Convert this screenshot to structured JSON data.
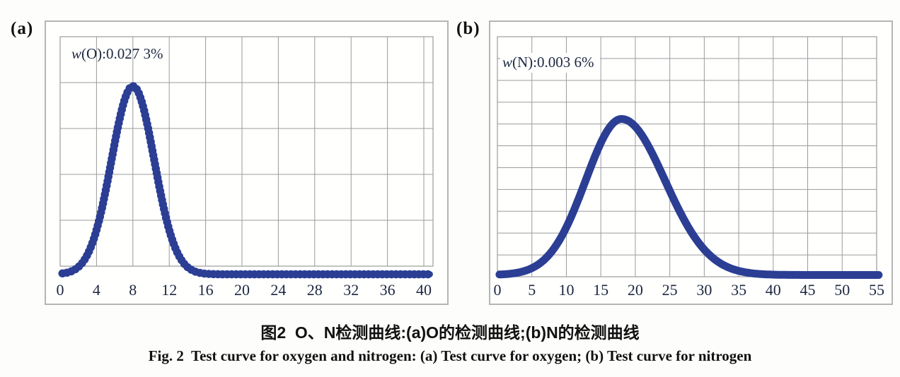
{
  "figure": {
    "panel_a_label": "(a)",
    "panel_b_label": "(b)",
    "caption_cn": "图2  O、N检测曲线:(a)O的检测曲线;(b)N的检测曲线",
    "caption_en": "Fig. 2  Test curve for oxygen and nitrogen: (a) Test curve for oxygen; (b) Test curve for nitrogen"
  },
  "colors": {
    "curve": "#2b3e94",
    "grid": "#9b9b9b",
    "panel_border": "#b5b5b5",
    "tick_text": "#1c2740",
    "caption_text": "#111111"
  },
  "chart_data": [
    {
      "id": "a",
      "type": "line",
      "title": "Test curve for oxygen",
      "annotation": {
        "var": "w",
        "rest": "(O):0.027 3%"
      },
      "x_ticks": [
        0,
        4,
        8,
        12,
        16,
        20,
        24,
        28,
        32,
        36,
        40
      ],
      "xlim": [
        0,
        41
      ],
      "ylim": [
        0,
        1
      ],
      "grid": {
        "on": true,
        "rows": 5
      },
      "legend": "none",
      "curve": {
        "shape": "gaussian",
        "center": 8,
        "sigma_left": 2.35,
        "sigma_right": 2.35,
        "peak_height_fraction": 0.82,
        "baseline": 0,
        "draw_range": [
          0.25,
          40.8
        ],
        "style": "thick-dotted"
      },
      "x_step": 1,
      "values": [
        0.002,
        0.009,
        0.032,
        0.085,
        0.193,
        0.363,
        0.571,
        0.749,
        0.82,
        0.749,
        0.571,
        0.363,
        0.193,
        0.085,
        0.032,
        0.009,
        0.002,
        0.001,
        0,
        0,
        0,
        0,
        0,
        0,
        0,
        0,
        0,
        0,
        0,
        0,
        0,
        0,
        0,
        0,
        0,
        0,
        0,
        0,
        0,
        0,
        0
      ]
    },
    {
      "id": "b",
      "type": "line",
      "title": "Test curve for nitrogen",
      "annotation": {
        "var": "w",
        "rest": "(N):0.003 6%"
      },
      "x_ticks": [
        0,
        5,
        10,
        15,
        20,
        25,
        30,
        35,
        40,
        45,
        50,
        55
      ],
      "xlim": [
        0,
        55
      ],
      "ylim": [
        0,
        1
      ],
      "grid": {
        "on": true,
        "rows": 11
      },
      "legend": "none",
      "curve": {
        "shape": "gaussian",
        "center": 18,
        "sigma_left": 5.2,
        "sigma_right": 6.3,
        "peak_height_fraction": 0.65,
        "baseline": 0,
        "draw_range": [
          0.3,
          55.4
        ],
        "style": "thick-smooth"
      },
      "x_step": 1,
      "values": [
        0.002,
        0.003,
        0.006,
        0.01,
        0.017,
        0.029,
        0.045,
        0.069,
        0.102,
        0.145,
        0.199,
        0.263,
        0.334,
        0.409,
        0.483,
        0.55,
        0.603,
        0.638,
        0.65,
        0.642,
        0.618,
        0.58,
        0.531,
        0.474,
        0.413,
        0.35,
        0.29,
        0.234,
        0.184,
        0.142,
        0.106,
        0.077,
        0.055,
        0.038,
        0.026,
        0.017,
        0.011,
        0.007,
        0.004,
        0.003,
        0.002,
        0.001,
        0,
        0,
        0,
        0,
        0,
        0,
        0,
        0,
        0,
        0,
        0,
        0,
        0,
        0
      ]
    }
  ]
}
